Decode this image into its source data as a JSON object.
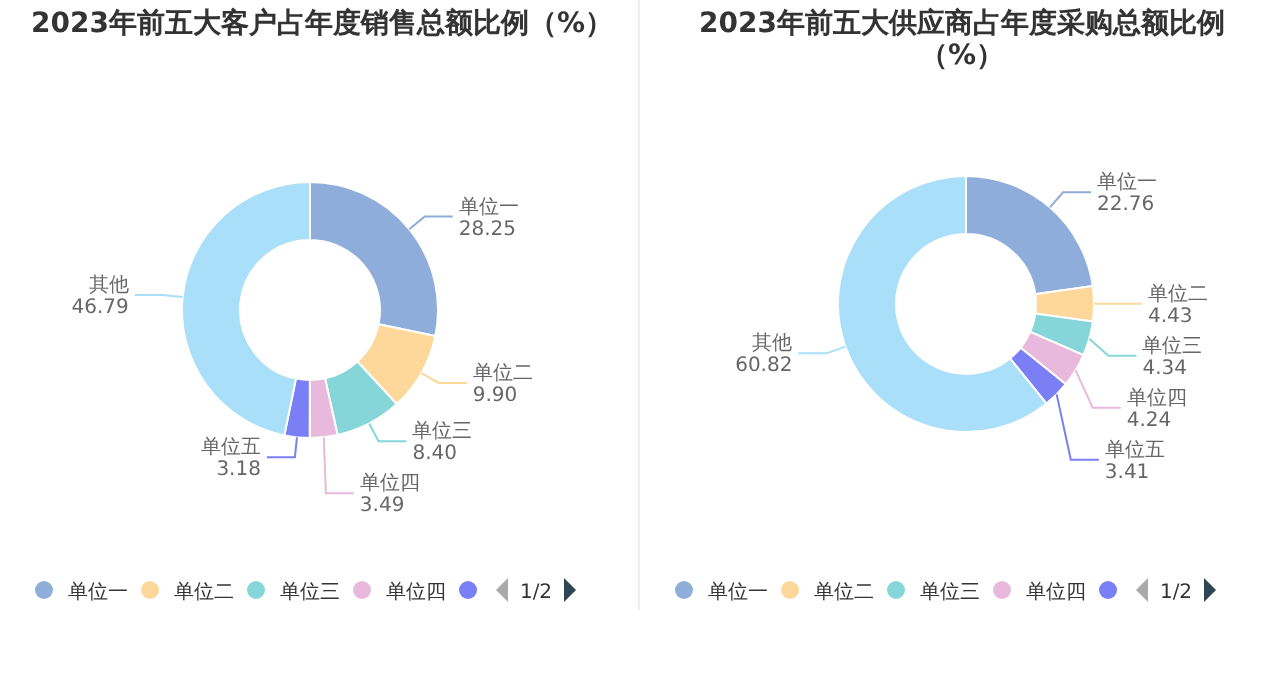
{
  "chart_data": [
    {
      "type": "donut",
      "title": "2023年前五大客户占年度销售总额比例（%）",
      "categories": [
        "单位一",
        "单位二",
        "单位三",
        "单位四",
        "单位五",
        "其他"
      ],
      "values": [
        28.25,
        9.9,
        8.4,
        3.49,
        3.18,
        46.79
      ],
      "value_labels": [
        "28.25",
        "9.90",
        "8.40",
        "3.49",
        "3.18",
        "46.79"
      ],
      "colors": [
        "#8eaddb",
        "#fdd89a",
        "#86d6d9",
        "#e8b9dc",
        "#7b7ff5",
        "#a9dff8"
      ],
      "legend": "bottom",
      "annotations": [
        "1/2"
      ]
    },
    {
      "type": "donut",
      "title": "2023年前五大供应商占年度采购总额比例（%）",
      "categories": [
        "单位一",
        "单位二",
        "单位三",
        "单位四",
        "单位五",
        "其他"
      ],
      "values": [
        22.76,
        4.43,
        4.34,
        4.24,
        3.41,
        60.82
      ],
      "value_labels": [
        "22.76",
        "4.43",
        "4.34",
        "4.24",
        "3.41",
        "60.82"
      ],
      "colors": [
        "#8eaddb",
        "#fdd89a",
        "#86d6d9",
        "#e8b9dc",
        "#7b7ff5",
        "#a9dff8"
      ],
      "legend": "bottom",
      "annotations": [
        "1/2"
      ]
    }
  ]
}
